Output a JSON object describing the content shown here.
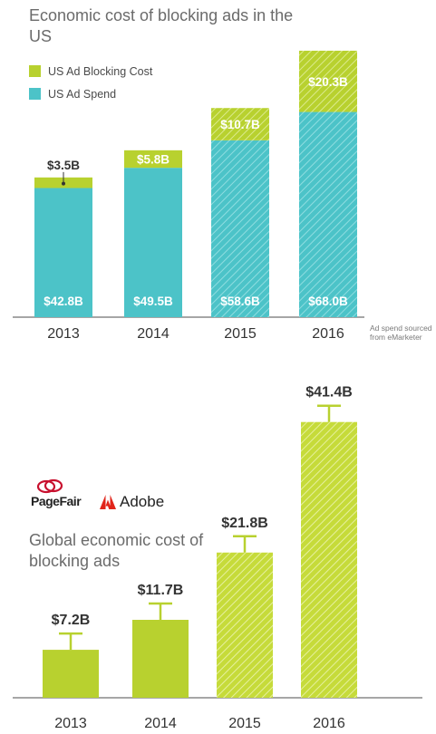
{
  "colors": {
    "spend": "#4cc3c8",
    "blocking": "#b8d12f",
    "axis": "#888888",
    "text": "#333333"
  },
  "logos": {
    "pagefair": "PageFair",
    "adobe": "Adobe"
  },
  "chart_data": [
    {
      "type": "bar",
      "stacked": true,
      "title": "Economic cost of blocking ads in the US",
      "categories": [
        "2013",
        "2014",
        "2015",
        "2016"
      ],
      "series": [
        {
          "name": "US Ad Spend",
          "values": [
            42.8,
            49.5,
            58.6,
            68.0
          ],
          "labels": [
            "$42.8B",
            "$49.5B",
            "$58.6B",
            "$68.0B"
          ]
        },
        {
          "name": "US Ad Blocking Cost",
          "values": [
            3.5,
            5.8,
            10.7,
            20.3
          ],
          "labels": [
            "$3.5B",
            "$5.8B",
            "$10.7B",
            "$20.3B"
          ]
        }
      ],
      "hatched_categories": [
        "2015",
        "2016"
      ],
      "legend": "top-left",
      "note": "Ad spend sourced from eMarketer"
    },
    {
      "type": "bar",
      "title": "Global economic cost of blocking ads",
      "categories": [
        "2013",
        "2014",
        "2015",
        "2016"
      ],
      "values": [
        7.2,
        11.7,
        21.8,
        41.4
      ],
      "labels": [
        "$7.2B",
        "$11.7B",
        "$21.8B",
        "$41.4B"
      ],
      "error_bars": true,
      "hatched_categories": [
        "2015",
        "2016"
      ]
    }
  ]
}
